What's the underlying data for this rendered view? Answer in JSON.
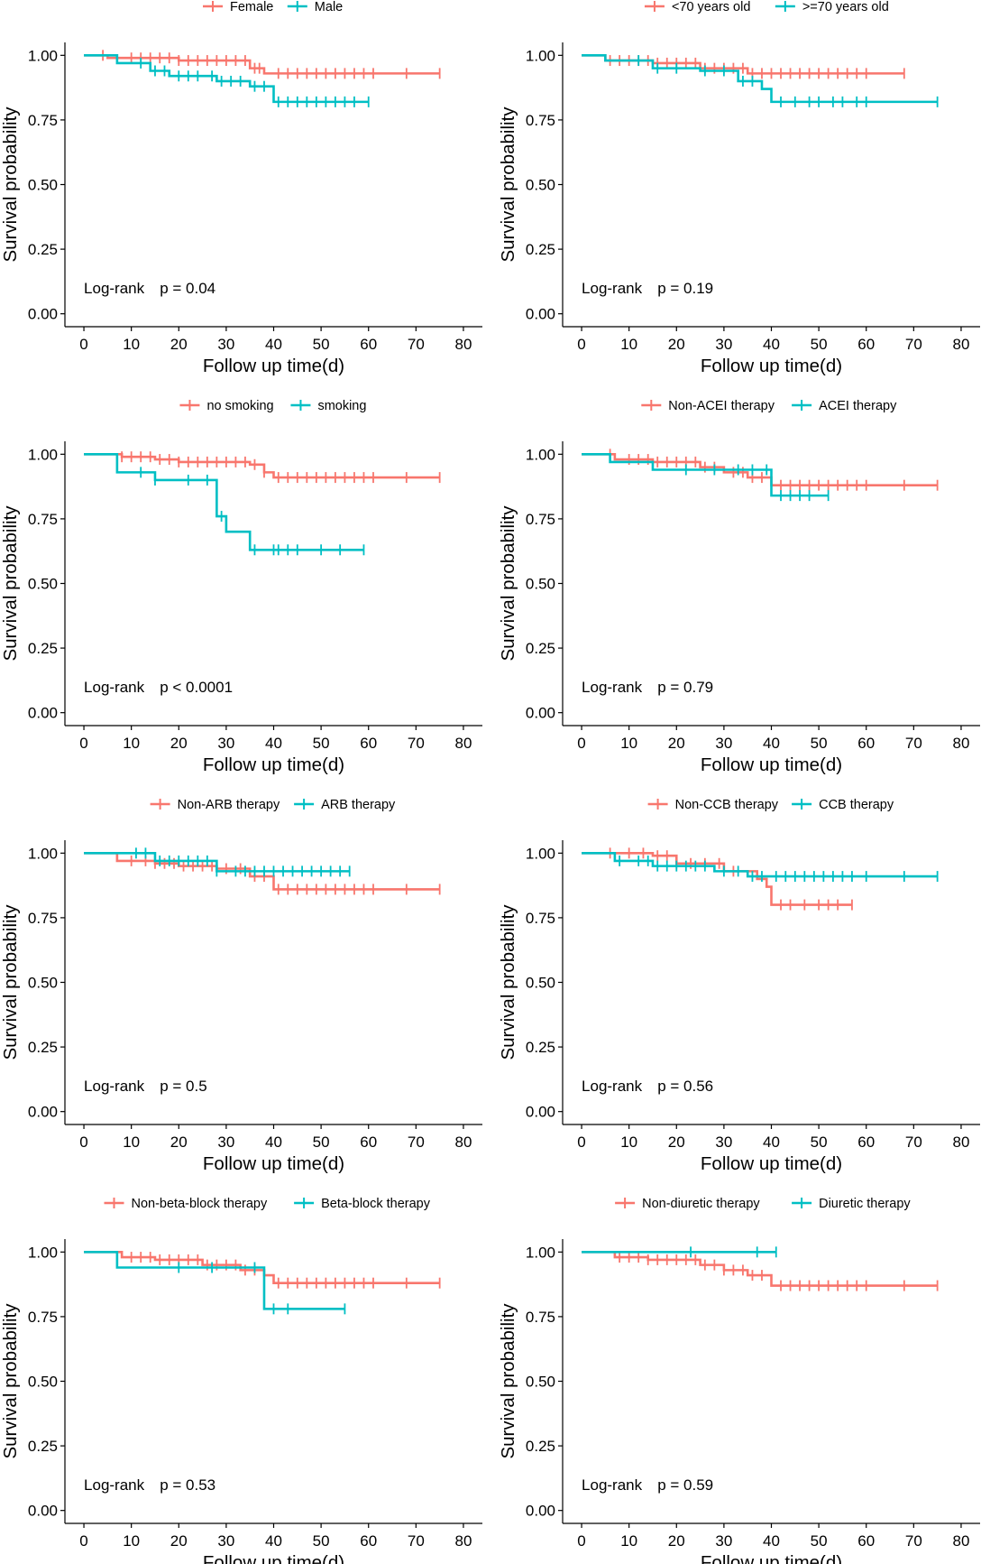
{
  "colors": {
    "group1": "#F8766D",
    "group2": "#00BFC4",
    "axis": "#000000"
  },
  "common": {
    "xlabel": "Follow up time(d)",
    "ylabel": "Survival probability",
    "xticks": [
      0,
      10,
      20,
      30,
      40,
      50,
      60,
      70,
      80
    ],
    "yticks": [
      "0.00",
      "0.25",
      "0.50",
      "0.75",
      "1.00"
    ],
    "xlim": [
      -4,
      84
    ],
    "ylim": [
      -0.05,
      1.05
    ],
    "logrank_label": "Log-rank"
  },
  "chart_data": [
    {
      "type": "line",
      "legend": [
        "Female",
        "Male"
      ],
      "p_value": "p = 0.04",
      "series": [
        {
          "name": "Female",
          "steps": [
            [
              0,
              1
            ],
            [
              5,
              0.99
            ],
            [
              20,
              0.98
            ],
            [
              35,
              0.95
            ],
            [
              38,
              0.93
            ],
            [
              75,
              0.93
            ]
          ],
          "censor": [
            4,
            10,
            12,
            14,
            16,
            18,
            20,
            22,
            24,
            26,
            28,
            30,
            32,
            34,
            36,
            37,
            41,
            43,
            45,
            47,
            49,
            51,
            53,
            55,
            57,
            59,
            61,
            68,
            75
          ]
        },
        {
          "name": "Male",
          "steps": [
            [
              0,
              1
            ],
            [
              7,
              0.97
            ],
            [
              14,
              0.94
            ],
            [
              18,
              0.92
            ],
            [
              28,
              0.9
            ],
            [
              35,
              0.88
            ],
            [
              40,
              0.82
            ],
            [
              60,
              0.82
            ]
          ],
          "censor": [
            12,
            15,
            17,
            20,
            22,
            24,
            27,
            29,
            31,
            33,
            36,
            38,
            41,
            43,
            45,
            47,
            49,
            51,
            53,
            55,
            57,
            60
          ]
        }
      ]
    },
    {
      "type": "line",
      "legend": [
        "<70 years old",
        ">=70 years old"
      ],
      "p_value": "p = 0.19",
      "series": [
        {
          "name": "<70 years old",
          "steps": [
            [
              0,
              1
            ],
            [
              5,
              0.98
            ],
            [
              15,
              0.97
            ],
            [
              25,
              0.95
            ],
            [
              35,
              0.93
            ],
            [
              68,
              0.93
            ]
          ],
          "censor": [
            6,
            8,
            10,
            12,
            14,
            16,
            18,
            20,
            22,
            24,
            26,
            28,
            30,
            32,
            34,
            36,
            38,
            40,
            42,
            44,
            46,
            48,
            50,
            52,
            54,
            56,
            58,
            60,
            68
          ]
        },
        {
          "name": ">=70 years old",
          "steps": [
            [
              0,
              1
            ],
            [
              5,
              0.98
            ],
            [
              15,
              0.95
            ],
            [
              25,
              0.94
            ],
            [
              33,
              0.9
            ],
            [
              38,
              0.87
            ],
            [
              40,
              0.82
            ],
            [
              75,
              0.82
            ]
          ],
          "censor": [
            12,
            16,
            20,
            26,
            30,
            34,
            36,
            42,
            45,
            48,
            50,
            53,
            55,
            58,
            60,
            75
          ]
        }
      ]
    },
    {
      "type": "line",
      "legend": [
        "no smoking",
        "smoking"
      ],
      "p_value": "p < 0.0001",
      "series": [
        {
          "name": "no smoking",
          "steps": [
            [
              0,
              1
            ],
            [
              8,
              0.99
            ],
            [
              15,
              0.98
            ],
            [
              20,
              0.97
            ],
            [
              35,
              0.96
            ],
            [
              38,
              0.93
            ],
            [
              40,
              0.91
            ],
            [
              75,
              0.91
            ]
          ],
          "censor": [
            8,
            10,
            12,
            14,
            16,
            18,
            20,
            22,
            24,
            26,
            28,
            30,
            32,
            34,
            36,
            38,
            41,
            43,
            45,
            47,
            49,
            51,
            53,
            55,
            57,
            59,
            61,
            68,
            75
          ]
        },
        {
          "name": "smoking",
          "steps": [
            [
              0,
              1
            ],
            [
              7,
              0.93
            ],
            [
              15,
              0.9
            ],
            [
              28,
              0.76
            ],
            [
              30,
              0.7
            ],
            [
              35,
              0.63
            ],
            [
              59,
              0.63
            ]
          ],
          "censor": [
            12,
            15,
            22,
            26,
            29,
            36,
            40,
            41,
            43,
            45,
            50,
            54,
            59
          ]
        }
      ]
    },
    {
      "type": "line",
      "legend": [
        "Non-ACEI therapy",
        "ACEI therapy"
      ],
      "p_value": "p = 0.79",
      "series": [
        {
          "name": "Non-ACEI therapy",
          "steps": [
            [
              0,
              1
            ],
            [
              7,
              0.98
            ],
            [
              15,
              0.97
            ],
            [
              25,
              0.95
            ],
            [
              30,
              0.93
            ],
            [
              35,
              0.91
            ],
            [
              40,
              0.88
            ],
            [
              75,
              0.88
            ]
          ],
          "censor": [
            6,
            10,
            12,
            14,
            16,
            18,
            20,
            22,
            24,
            26,
            28,
            32,
            34,
            36,
            38,
            42,
            44,
            46,
            48,
            50,
            52,
            54,
            56,
            58,
            60,
            68,
            75
          ]
        },
        {
          "name": "ACEI therapy",
          "steps": [
            [
              0,
              1
            ],
            [
              6,
              0.97
            ],
            [
              15,
              0.94
            ],
            [
              30,
              0.94
            ],
            [
              40,
              0.84
            ],
            [
              52,
              0.84
            ]
          ],
          "censor": [
            22,
            28,
            33,
            36,
            39,
            42,
            44,
            46,
            48,
            52
          ]
        }
      ]
    },
    {
      "type": "line",
      "legend": [
        "Non-ARB therapy",
        "ARB therapy"
      ],
      "p_value": "p = 0.5",
      "series": [
        {
          "name": "Non-ARB therapy",
          "steps": [
            [
              0,
              1
            ],
            [
              7,
              0.97
            ],
            [
              15,
              0.96
            ],
            [
              20,
              0.95
            ],
            [
              28,
              0.94
            ],
            [
              35,
              0.91
            ],
            [
              40,
              0.86
            ],
            [
              75,
              0.86
            ]
          ],
          "censor": [
            10,
            13,
            15,
            17,
            19,
            21,
            23,
            25,
            27,
            30,
            33,
            36,
            38,
            41,
            43,
            45,
            47,
            49,
            51,
            53,
            55,
            57,
            59,
            61,
            68,
            75
          ]
        },
        {
          "name": "ARB therapy",
          "steps": [
            [
              0,
              1
            ],
            [
              15,
              0.97
            ],
            [
              28,
              0.93
            ],
            [
              56,
              0.93
            ]
          ],
          "censor": [
            11,
            13,
            16,
            18,
            20,
            22,
            24,
            26,
            28,
            32,
            34,
            36,
            38,
            40,
            42,
            44,
            46,
            48,
            50,
            52,
            54,
            56
          ]
        }
      ]
    },
    {
      "type": "line",
      "legend": [
        "Non-CCB therapy",
        "CCB therapy"
      ],
      "p_value": "p = 0.56",
      "series": [
        {
          "name": "Non-CCB therapy",
          "steps": [
            [
              0,
              1
            ],
            [
              15,
              0.99
            ],
            [
              20,
              0.96
            ],
            [
              30,
              0.93
            ],
            [
              37,
              0.9
            ],
            [
              39,
              0.87
            ],
            [
              40,
              0.8
            ],
            [
              57,
              0.8
            ]
          ],
          "censor": [
            6,
            10,
            13,
            16,
            18,
            20,
            23,
            26,
            29,
            32,
            42,
            44,
            47,
            50,
            52,
            54,
            57
          ]
        },
        {
          "name": "CCB therapy",
          "steps": [
            [
              0,
              1
            ],
            [
              7,
              0.97
            ],
            [
              15,
              0.95
            ],
            [
              28,
              0.93
            ],
            [
              35,
              0.91
            ],
            [
              75,
              0.91
            ]
          ],
          "censor": [
            8,
            12,
            14,
            16,
            18,
            20,
            22,
            24,
            26,
            30,
            33,
            36,
            38,
            41,
            43,
            45,
            47,
            49,
            51,
            53,
            55,
            57,
            60,
            68,
            75
          ]
        }
      ]
    },
    {
      "type": "line",
      "legend": [
        "Non-beta-block therapy",
        "Beta-block therapy"
      ],
      "p_value": "p = 0.53",
      "series": [
        {
          "name": "Non-beta-block therapy",
          "steps": [
            [
              0,
              1
            ],
            [
              8,
              0.98
            ],
            [
              15,
              0.97
            ],
            [
              25,
              0.95
            ],
            [
              33,
              0.93
            ],
            [
              38,
              0.91
            ],
            [
              40,
              0.88
            ],
            [
              75,
              0.88
            ]
          ],
          "censor": [
            10,
            12,
            14,
            16,
            18,
            20,
            22,
            24,
            26,
            28,
            30,
            32,
            34,
            36,
            41,
            43,
            45,
            47,
            49,
            51,
            53,
            55,
            57,
            59,
            61,
            68,
            75
          ]
        },
        {
          "name": "Beta-block therapy",
          "steps": [
            [
              0,
              1
            ],
            [
              7,
              0.94
            ],
            [
              38,
              0.78
            ],
            [
              55,
              0.78
            ]
          ],
          "censor": [
            20,
            27,
            36,
            40,
            43,
            55
          ]
        }
      ]
    },
    {
      "type": "line",
      "legend": [
        "Non-diuretic therapy",
        "Diuretic therapy"
      ],
      "p_value": "p = 0.59",
      "series": [
        {
          "name": "Non-diuretic therapy",
          "steps": [
            [
              0,
              1
            ],
            [
              7,
              0.98
            ],
            [
              14,
              0.97
            ],
            [
              25,
              0.95
            ],
            [
              30,
              0.93
            ],
            [
              35,
              0.91
            ],
            [
              40,
              0.87
            ],
            [
              75,
              0.87
            ]
          ],
          "censor": [
            8,
            10,
            12,
            14,
            16,
            18,
            20,
            22,
            24,
            26,
            28,
            30,
            32,
            34,
            36,
            38,
            42,
            44,
            46,
            48,
            50,
            52,
            54,
            56,
            58,
            60,
            68,
            75
          ]
        },
        {
          "name": "Diuretic therapy",
          "steps": [
            [
              0,
              1
            ],
            [
              41,
              1
            ]
          ],
          "censor": [
            23,
            37,
            41
          ]
        }
      ]
    }
  ]
}
